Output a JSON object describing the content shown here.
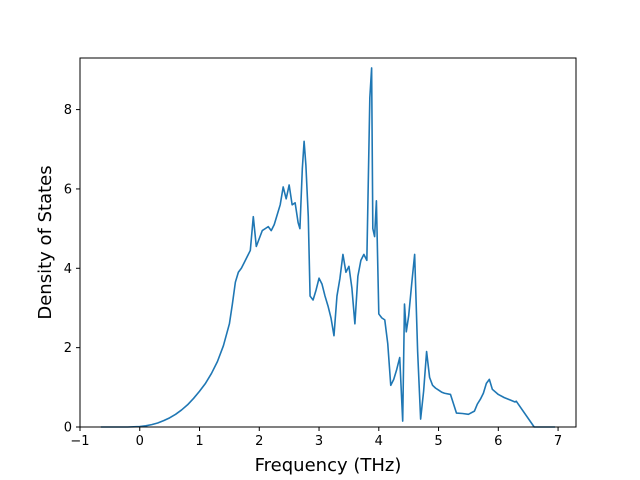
{
  "chart_data": {
    "type": "line",
    "title": "",
    "xlabel": "Frequency (THz)",
    "ylabel": "Density of States",
    "xlim": [
      -1,
      7.3
    ],
    "ylim": [
      0,
      9.3
    ],
    "xticks": [
      -1,
      0,
      1,
      2,
      3,
      4,
      5,
      6,
      7
    ],
    "yticks": [
      0,
      2,
      4,
      6,
      8
    ],
    "grid": false,
    "legend": "none",
    "series": [
      {
        "color": "#1f77b4",
        "x": [
          -0.65,
          -0.2,
          0.0,
          0.1,
          0.2,
          0.3,
          0.4,
          0.5,
          0.6,
          0.7,
          0.8,
          0.9,
          1.0,
          1.1,
          1.2,
          1.3,
          1.4,
          1.5,
          1.55,
          1.6,
          1.65,
          1.7,
          1.75,
          1.8,
          1.85,
          1.9,
          1.95,
          2.0,
          2.05,
          2.1,
          2.15,
          2.2,
          2.25,
          2.3,
          2.35,
          2.4,
          2.45,
          2.5,
          2.55,
          2.6,
          2.65,
          2.68,
          2.72,
          2.75,
          2.78,
          2.82,
          2.85,
          2.9,
          2.95,
          3.0,
          3.05,
          3.1,
          3.15,
          3.2,
          3.25,
          3.3,
          3.35,
          3.4,
          3.45,
          3.5,
          3.55,
          3.6,
          3.65,
          3.7,
          3.75,
          3.8,
          3.85,
          3.88,
          3.9,
          3.93,
          3.96,
          4.0,
          4.05,
          4.1,
          4.15,
          4.2,
          4.25,
          4.3,
          4.35,
          4.4,
          4.43,
          4.46,
          4.5,
          4.55,
          4.6,
          4.65,
          4.7,
          4.75,
          4.8,
          4.85,
          4.9,
          4.95,
          5.0,
          5.05,
          5.1,
          5.2,
          5.3,
          5.4,
          5.5,
          5.6,
          5.65,
          5.7,
          5.75,
          5.8,
          5.85,
          5.9,
          6.0,
          6.1,
          6.2,
          6.25,
          6.28,
          6.3,
          6.6,
          6.95
        ],
        "values": [
          0.0,
          0.0,
          0.01,
          0.03,
          0.06,
          0.1,
          0.16,
          0.23,
          0.32,
          0.43,
          0.56,
          0.72,
          0.9,
          1.1,
          1.35,
          1.65,
          2.05,
          2.6,
          3.1,
          3.65,
          3.9,
          4.0,
          4.15,
          4.3,
          4.45,
          5.3,
          4.55,
          4.75,
          4.95,
          5.0,
          5.05,
          4.95,
          5.1,
          5.35,
          5.6,
          6.05,
          5.75,
          6.1,
          5.6,
          5.65,
          5.15,
          5.0,
          6.5,
          7.2,
          6.6,
          5.3,
          3.3,
          3.2,
          3.45,
          3.75,
          3.6,
          3.3,
          3.05,
          2.75,
          2.3,
          3.3,
          3.75,
          4.35,
          3.9,
          4.05,
          3.5,
          2.6,
          3.8,
          4.2,
          4.35,
          4.2,
          8.3,
          9.05,
          5.0,
          4.8,
          5.7,
          2.85,
          2.75,
          2.7,
          2.1,
          1.05,
          1.2,
          1.45,
          1.75,
          0.15,
          3.1,
          2.4,
          2.8,
          3.6,
          4.35,
          1.9,
          0.2,
          0.9,
          1.9,
          1.25,
          1.05,
          0.98,
          0.93,
          0.88,
          0.85,
          0.82,
          0.35,
          0.34,
          0.32,
          0.4,
          0.58,
          0.7,
          0.85,
          1.1,
          1.2,
          0.95,
          0.82,
          0.74,
          0.68,
          0.65,
          0.63,
          0.65,
          0.0,
          0.0
        ]
      }
    ]
  }
}
